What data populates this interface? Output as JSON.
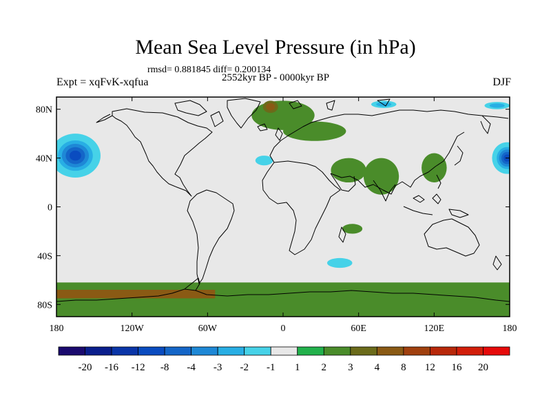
{
  "chart_data": {
    "type": "heatmap",
    "title": "Mean Sea Level Pressure (in hPa)",
    "stats_text": "rmsd= 0.881845 diff= 0.200134",
    "period": "2552kyr BP - 0000kyr BP",
    "experiment": "Expt = xqFvK-xqfua",
    "season": "DJF",
    "x_ticks": [
      {
        "value": -180,
        "label": "180"
      },
      {
        "value": -120,
        "label": "120W"
      },
      {
        "value": -60,
        "label": "60W"
      },
      {
        "value": 0,
        "label": "0"
      },
      {
        "value": 60,
        "label": "60E"
      },
      {
        "value": 120,
        "label": "120E"
      },
      {
        "value": 180,
        "label": "180"
      }
    ],
    "y_ticks": [
      {
        "value": 80,
        "label": "80N"
      },
      {
        "value": 40,
        "label": "40N"
      },
      {
        "value": 0,
        "label": "0"
      },
      {
        "value": -40,
        "label": "40S"
      },
      {
        "value": -80,
        "label": "80S"
      }
    ],
    "xlim": [
      -180,
      180
    ],
    "ylim": [
      -90,
      90
    ],
    "colorbar": {
      "labels": [
        "-20",
        "-16",
        "-12",
        "-8",
        "-4",
        "-3",
        "-2",
        "-1",
        "1",
        "2",
        "3",
        "4",
        "8",
        "12",
        "16",
        "20"
      ],
      "colors": [
        "#1a0a6e",
        "#0a1e8c",
        "#0a35a8",
        "#0a4cc0",
        "#1466c8",
        "#1e88d6",
        "#28aee4",
        "#46d2e8",
        "#e8e8e8",
        "#22b14c",
        "#4a8c2a",
        "#6b6b1a",
        "#8a5a14",
        "#a0400e",
        "#b8280a",
        "#d21e0a",
        "#e60a0a"
      ]
    },
    "anomalies": [
      {
        "name": "north-pacific-low",
        "lon": -165,
        "lat": 42,
        "rx": 20,
        "ry": 18,
        "level": -12
      },
      {
        "name": "siberian-coast-low",
        "lon": 178,
        "lat": 40,
        "rx": 12,
        "ry": 13,
        "level": -12
      },
      {
        "name": "mid-atlantic-low",
        "lon": -15,
        "lat": 38,
        "rx": 7,
        "ry": 4,
        "level": -2
      },
      {
        "name": "southern-indian-low",
        "lon": 45,
        "lat": -46,
        "rx": 10,
        "ry": 4,
        "level": -2
      },
      {
        "name": "arctic-bering-low",
        "lon": 80,
        "lat": 84,
        "rx": 10,
        "ry": 3,
        "level": -3
      },
      {
        "name": "arctic-siberia-low",
        "lon": 170,
        "lat": 83,
        "rx": 10,
        "ry": 3,
        "level": -3
      },
      {
        "name": "europe-high",
        "lon": 0,
        "lat": 75,
        "rx": 25,
        "ry": 12,
        "level": 2
      },
      {
        "name": "scandinavia-high",
        "lon": 25,
        "lat": 62,
        "rx": 25,
        "ry": 8,
        "level": 2
      },
      {
        "name": "arabia-high",
        "lon": 52,
        "lat": 30,
        "rx": 14,
        "ry": 10,
        "level": 2
      },
      {
        "name": "india-high",
        "lon": 78,
        "lat": 25,
        "rx": 14,
        "ry": 15,
        "level": 2
      },
      {
        "name": "east-asia-high",
        "lon": 120,
        "lat": 32,
        "rx": 10,
        "ry": 12,
        "level": 2
      },
      {
        "name": "madagascar-high",
        "lon": 55,
        "lat": -18,
        "rx": 8,
        "ry": 4,
        "level": 2
      },
      {
        "name": "greenland-high",
        "lon": -10,
        "lat": 82,
        "rx": 6,
        "ry": 5,
        "level": 4
      }
    ]
  }
}
